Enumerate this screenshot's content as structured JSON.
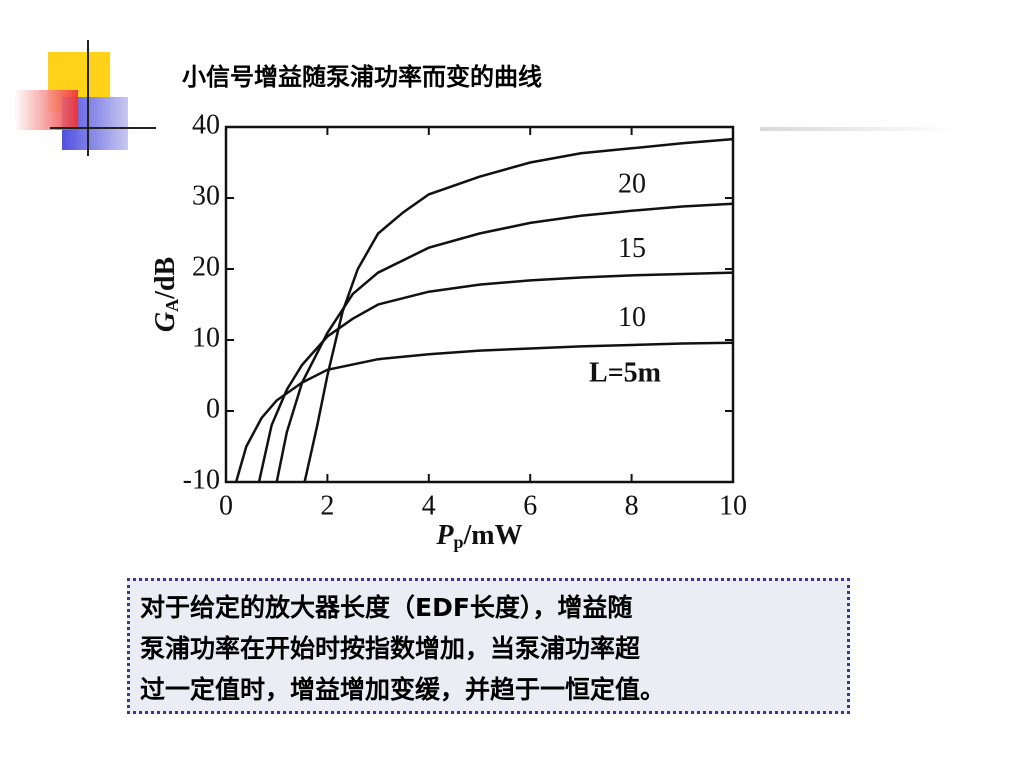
{
  "chart_data": {
    "type": "line",
    "title": "小信号增益随泵浦功率而变的曲线",
    "xlabel": {
      "main": "P",
      "sub": "p",
      "unit": "/mW"
    },
    "ylabel": {
      "main": "G",
      "sub": "A",
      "unit": "/dB"
    },
    "xlim": [
      0,
      10
    ],
    "xticks": [
      0,
      2,
      4,
      6,
      8,
      10
    ],
    "ylim": [
      -10,
      40
    ],
    "yticks": [
      -10,
      0,
      10,
      20,
      30,
      40
    ],
    "series": [
      {
        "name": "20",
        "color": "#111111",
        "x": [
          1.55,
          1.8,
          2,
          2.3,
          2.6,
          3,
          3.5,
          4,
          5,
          6,
          7,
          8,
          9,
          10
        ],
        "values": [
          -10,
          -2,
          5,
          14,
          20,
          25,
          28,
          30.5,
          33,
          35,
          36.3,
          37,
          37.7,
          38.3
        ]
      },
      {
        "name": "15",
        "color": "#111111",
        "x": [
          1.0,
          1.2,
          1.5,
          2,
          2.5,
          3,
          4,
          5,
          6,
          7,
          8,
          9,
          10
        ],
        "values": [
          -10,
          -3,
          4,
          11,
          16.5,
          19.5,
          23,
          25,
          26.5,
          27.5,
          28.2,
          28.8,
          29.2
        ]
      },
      {
        "name": "10",
        "color": "#111111",
        "x": [
          0.65,
          0.9,
          1.2,
          1.5,
          2,
          2.5,
          3,
          4,
          5,
          6,
          7,
          8,
          9,
          10
        ],
        "values": [
          -10,
          -2,
          3,
          6.5,
          10.5,
          13,
          15,
          16.8,
          17.8,
          18.4,
          18.8,
          19.1,
          19.3,
          19.5
        ]
      },
      {
        "name": "L=5m",
        "color": "#111111",
        "x": [
          0.2,
          0.4,
          0.7,
          1,
          1.5,
          2,
          3,
          4,
          5,
          6,
          7,
          8,
          9,
          10
        ],
        "values": [
          -10,
          -5,
          -1,
          1.5,
          4,
          5.8,
          7.3,
          8,
          8.5,
          8.8,
          9.1,
          9.3,
          9.5,
          9.6
        ]
      }
    ]
  },
  "note": {
    "lines": [
      "对于给定的放大器长度（EDF长度），增益随",
      "泵浦功率在开始时按指数增加，当泵浦功率超",
      "过一定值时，增益增加变缓，并趋于一恒定值。"
    ]
  }
}
